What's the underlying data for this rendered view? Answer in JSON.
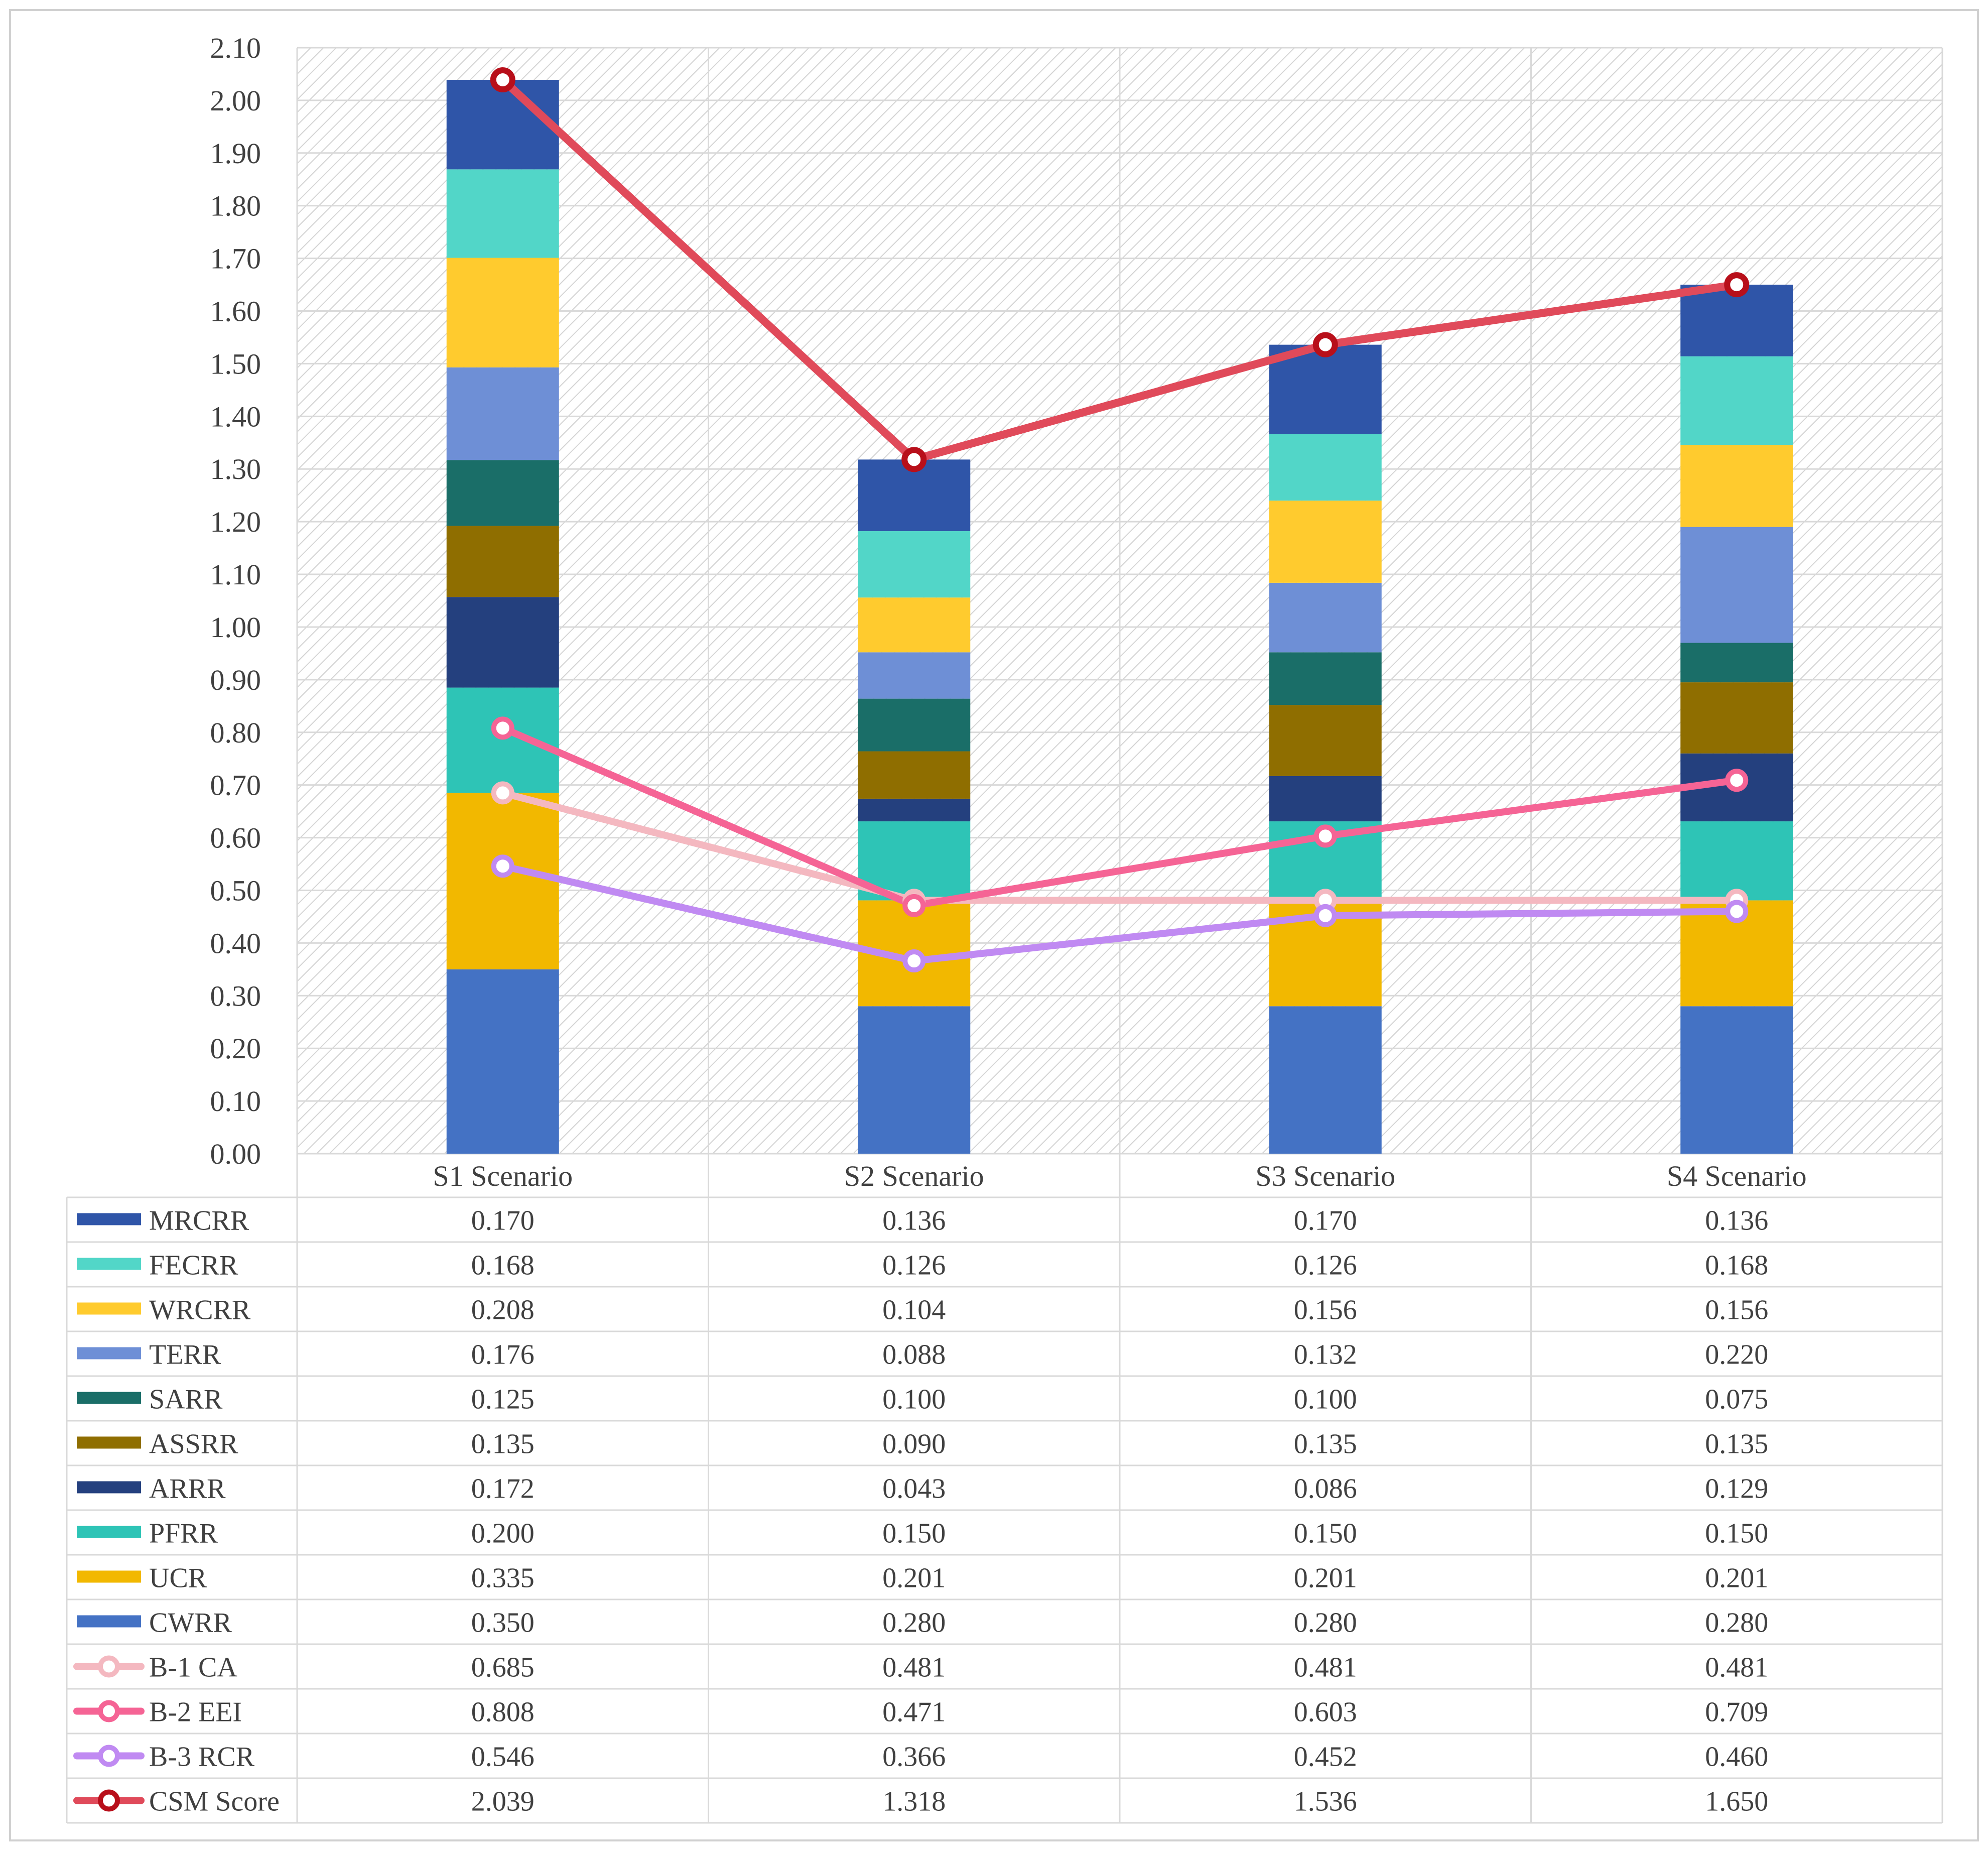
{
  "chart_data": {
    "type": "bar",
    "stacked": true,
    "categories": [
      "S1 Scenario",
      "S2 Scenario",
      "S3 Scenario",
      "S4 Scenario"
    ],
    "ylim": [
      0,
      2.1
    ],
    "ytick_step": 0.1,
    "yticks": [
      "0.00",
      "0.10",
      "0.20",
      "0.30",
      "0.40",
      "0.50",
      "0.60",
      "0.70",
      "0.80",
      "0.90",
      "1.00",
      "1.10",
      "1.20",
      "1.30",
      "1.40",
      "1.50",
      "1.60",
      "1.70",
      "1.80",
      "1.90",
      "2.00",
      "2.10"
    ],
    "grid": true,
    "plot_background": "diagonal hatch",
    "data_table": true,
    "bar_series": [
      {
        "name": "CWRR",
        "color": "#4472C4",
        "values": [
          0.35,
          0.28,
          0.28,
          0.28
        ],
        "labels": [
          "0.350",
          "0.280",
          "0.280",
          "0.280"
        ]
      },
      {
        "name": "UCR",
        "color": "#F2B800",
        "values": [
          0.335,
          0.201,
          0.201,
          0.201
        ],
        "labels": [
          "0.335",
          "0.201",
          "0.201",
          "0.201"
        ]
      },
      {
        "name": "PFRR",
        "color": "#2EC4B6",
        "values": [
          0.2,
          0.15,
          0.15,
          0.15
        ],
        "labels": [
          "0.200",
          "0.150",
          "0.150",
          "0.150"
        ]
      },
      {
        "name": "ARRR",
        "color": "#24407E",
        "values": [
          0.172,
          0.043,
          0.086,
          0.129
        ],
        "labels": [
          "0.172",
          "0.043",
          "0.086",
          "0.129"
        ]
      },
      {
        "name": "ASSRR",
        "color": "#8F6E00",
        "values": [
          0.135,
          0.09,
          0.135,
          0.135
        ],
        "labels": [
          "0.135",
          "0.090",
          "0.135",
          "0.135"
        ]
      },
      {
        "name": "SARR",
        "color": "#1A6E68",
        "values": [
          0.125,
          0.1,
          0.1,
          0.075
        ],
        "labels": [
          "0.125",
          "0.100",
          "0.100",
          "0.075"
        ]
      },
      {
        "name": "TERR",
        "color": "#6E8FD6",
        "values": [
          0.176,
          0.088,
          0.132,
          0.22
        ],
        "labels": [
          "0.176",
          "0.088",
          "0.132",
          "0.220"
        ]
      },
      {
        "name": "WRCRR",
        "color": "#FFCB2E",
        "values": [
          0.208,
          0.104,
          0.156,
          0.156
        ],
        "labels": [
          "0.208",
          "0.104",
          "0.156",
          "0.156"
        ]
      },
      {
        "name": "FECRR",
        "color": "#52D6C8",
        "values": [
          0.168,
          0.126,
          0.126,
          0.168
        ],
        "labels": [
          "0.168",
          "0.126",
          "0.126",
          "0.168"
        ]
      },
      {
        "name": "MRCRR",
        "color": "#2F55A8",
        "values": [
          0.17,
          0.136,
          0.17,
          0.136
        ],
        "labels": [
          "0.170",
          "0.136",
          "0.170",
          "0.136"
        ]
      }
    ],
    "line_series": [
      {
        "name": "B-1 CA",
        "color": "#F4B8C0",
        "values": [
          0.685,
          0.481,
          0.481,
          0.481
        ],
        "labels": [
          "0.685",
          "0.481",
          "0.481",
          "0.481"
        ]
      },
      {
        "name": "B-2 EEI",
        "color": "#F56495",
        "values": [
          0.808,
          0.471,
          0.603,
          0.709
        ],
        "labels": [
          "0.808",
          "0.471",
          "0.603",
          "0.709"
        ]
      },
      {
        "name": "B-3 RCR",
        "color": "#C08AF2",
        "values": [
          0.546,
          0.366,
          0.452,
          0.46
        ],
        "labels": [
          "0.546",
          "0.366",
          "0.452",
          "0.460"
        ]
      },
      {
        "name": "CSM Score",
        "color": "#E04A5A",
        "marker_color": "#B80F1A",
        "values": [
          2.039,
          1.318,
          1.536,
          1.65
        ],
        "labels": [
          "2.039",
          "1.318",
          "1.536",
          "1.650"
        ]
      }
    ],
    "table_row_order": [
      "MRCRR",
      "FECRR",
      "WRCRR",
      "TERR",
      "SARR",
      "ASSRR",
      "ARRR",
      "PFRR",
      "UCR",
      "CWRR",
      "B-1 CA",
      "B-2 EEI",
      "B-3 RCR",
      "CSM Score"
    ]
  }
}
